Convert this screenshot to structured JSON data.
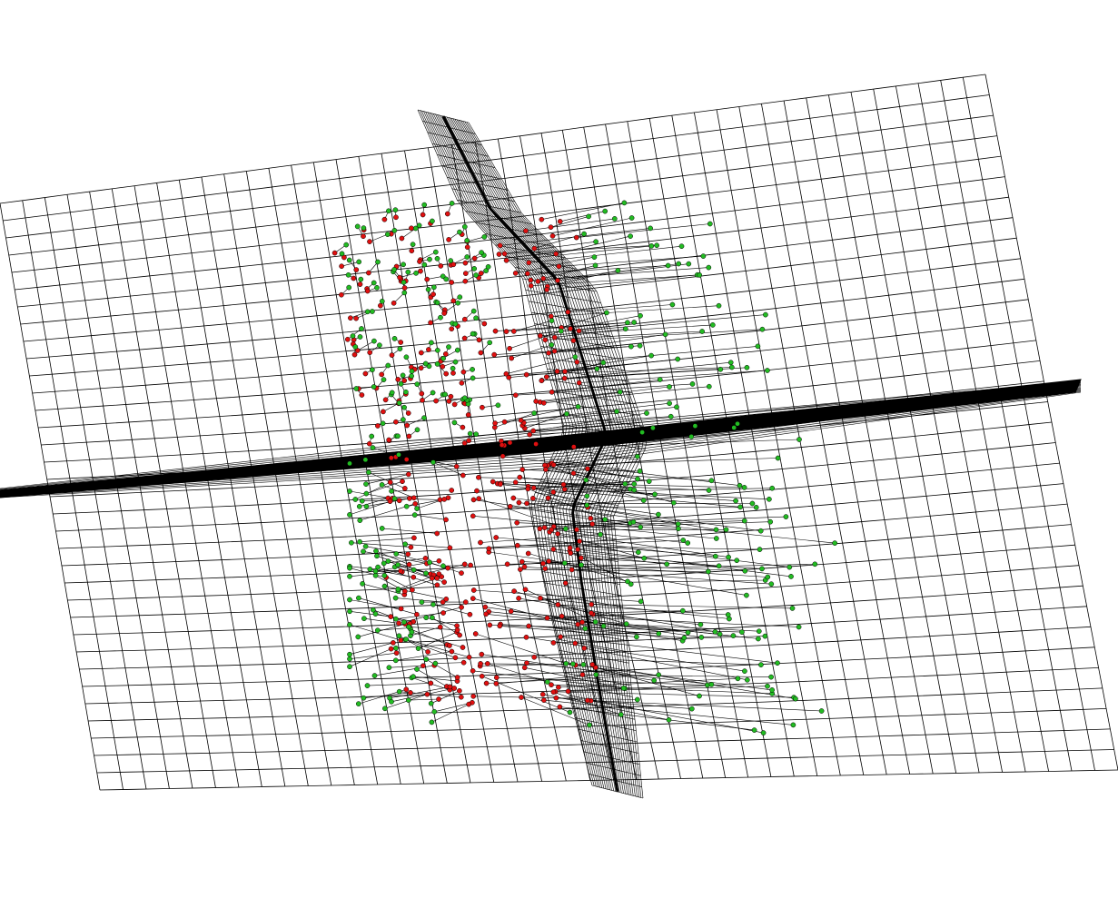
{
  "view": {
    "background": "#ffffff",
    "line_color": "#000000",
    "source_point_color": "#e01010",
    "target_point_color": "#22bb22"
  },
  "elements": {
    "main_grid": "deformed-grid-surface",
    "vertical_sheet": "vertical-grid-sheet",
    "horizontal_band": "horizontal-band",
    "displacements": "displacement-vectors",
    "source_points": "red-markers",
    "target_points": "green-markers"
  }
}
